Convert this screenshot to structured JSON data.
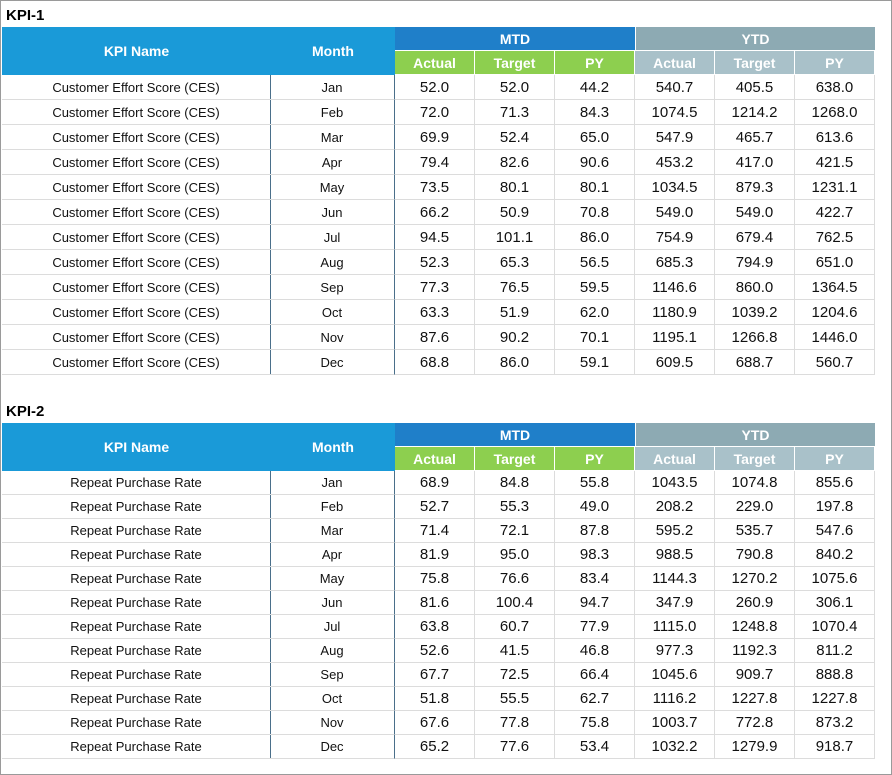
{
  "tables": [
    {
      "title": "KPI-1",
      "header": {
        "kpi_name": "KPI Name",
        "month": "Month",
        "mtd": "MTD",
        "ytd": "YTD",
        "mtd_cols": [
          "Actual",
          "Target",
          "PY"
        ],
        "ytd_cols": [
          "Actual",
          "Target",
          "PY"
        ]
      },
      "rows": [
        [
          "Customer Effort Score (CES)",
          "Jan",
          "52.0",
          "52.0",
          "44.2",
          "540.7",
          "405.5",
          "638.0"
        ],
        [
          "Customer Effort Score (CES)",
          "Feb",
          "72.0",
          "71.3",
          "84.3",
          "1074.5",
          "1214.2",
          "1268.0"
        ],
        [
          "Customer Effort Score (CES)",
          "Mar",
          "69.9",
          "52.4",
          "65.0",
          "547.9",
          "465.7",
          "613.6"
        ],
        [
          "Customer Effort Score (CES)",
          "Apr",
          "79.4",
          "82.6",
          "90.6",
          "453.2",
          "417.0",
          "421.5"
        ],
        [
          "Customer Effort Score (CES)",
          "May",
          "73.5",
          "80.1",
          "80.1",
          "1034.5",
          "879.3",
          "1231.1"
        ],
        [
          "Customer Effort Score (CES)",
          "Jun",
          "66.2",
          "50.9",
          "70.8",
          "549.0",
          "549.0",
          "422.7"
        ],
        [
          "Customer Effort Score (CES)",
          "Jul",
          "94.5",
          "101.1",
          "86.0",
          "754.9",
          "679.4",
          "762.5"
        ],
        [
          "Customer Effort Score (CES)",
          "Aug",
          "52.3",
          "65.3",
          "56.5",
          "685.3",
          "794.9",
          "651.0"
        ],
        [
          "Customer Effort Score (CES)",
          "Sep",
          "77.3",
          "76.5",
          "59.5",
          "1146.6",
          "860.0",
          "1364.5"
        ],
        [
          "Customer Effort Score (CES)",
          "Oct",
          "63.3",
          "51.9",
          "62.0",
          "1180.9",
          "1039.2",
          "1204.6"
        ],
        [
          "Customer Effort Score (CES)",
          "Nov",
          "87.6",
          "90.2",
          "70.1",
          "1195.1",
          "1266.8",
          "1446.0"
        ],
        [
          "Customer Effort Score (CES)",
          "Dec",
          "68.8",
          "86.0",
          "59.1",
          "609.5",
          "688.7",
          "560.7"
        ]
      ]
    },
    {
      "title": "KPI-2",
      "header": {
        "kpi_name": "KPI Name",
        "month": "Month",
        "mtd": "MTD",
        "ytd": "YTD",
        "mtd_cols": [
          "Actual",
          "Target",
          "PY"
        ],
        "ytd_cols": [
          "Actual",
          "Target",
          "PY"
        ]
      },
      "rows": [
        [
          "Repeat Purchase Rate",
          "Jan",
          "68.9",
          "84.8",
          "55.8",
          "1043.5",
          "1074.8",
          "855.6"
        ],
        [
          "Repeat Purchase Rate",
          "Feb",
          "52.7",
          "55.3",
          "49.0",
          "208.2",
          "229.0",
          "197.8"
        ],
        [
          "Repeat Purchase Rate",
          "Mar",
          "71.4",
          "72.1",
          "87.8",
          "595.2",
          "535.7",
          "547.6"
        ],
        [
          "Repeat Purchase Rate",
          "Apr",
          "81.9",
          "95.0",
          "98.3",
          "988.5",
          "790.8",
          "840.2"
        ],
        [
          "Repeat Purchase Rate",
          "May",
          "75.8",
          "76.6",
          "83.4",
          "1144.3",
          "1270.2",
          "1075.6"
        ],
        [
          "Repeat Purchase Rate",
          "Jun",
          "81.6",
          "100.4",
          "94.7",
          "347.9",
          "260.9",
          "306.1"
        ],
        [
          "Repeat Purchase Rate",
          "Jul",
          "63.8",
          "60.7",
          "77.9",
          "1115.0",
          "1248.8",
          "1070.4"
        ],
        [
          "Repeat Purchase Rate",
          "Aug",
          "52.6",
          "41.5",
          "46.8",
          "977.3",
          "1192.3",
          "811.2"
        ],
        [
          "Repeat Purchase Rate",
          "Sep",
          "67.7",
          "72.5",
          "66.4",
          "1045.6",
          "909.7",
          "888.8"
        ],
        [
          "Repeat Purchase Rate",
          "Oct",
          "51.8",
          "55.5",
          "62.7",
          "1116.2",
          "1227.8",
          "1227.8"
        ],
        [
          "Repeat Purchase Rate",
          "Nov",
          "67.6",
          "77.8",
          "75.8",
          "1003.7",
          "772.8",
          "873.2"
        ],
        [
          "Repeat Purchase Rate",
          "Dec",
          "65.2",
          "77.6",
          "53.4",
          "1032.2",
          "1279.9",
          "918.7"
        ]
      ]
    }
  ]
}
